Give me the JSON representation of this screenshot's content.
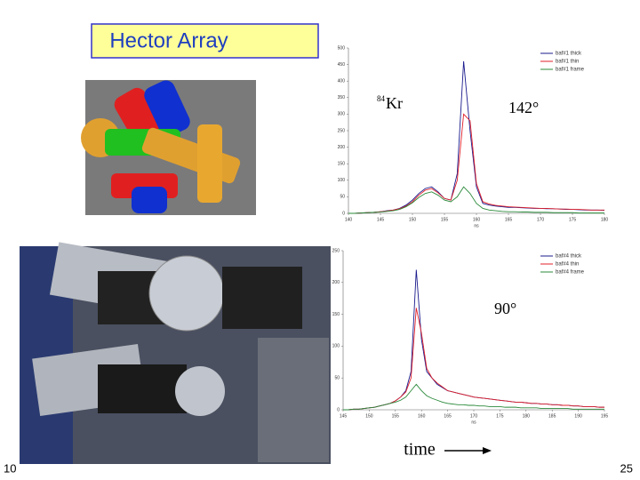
{
  "slide": {
    "title": "Hector Array",
    "isotope_mass": "84",
    "isotope": "Kr",
    "axis_caption": "time",
    "page_left": "10",
    "page_right": "25"
  },
  "chart_data": [
    {
      "type": "line",
      "annotation": "142°",
      "xlabel": "ns",
      "legend": "top-right",
      "x": [
        140,
        141,
        142,
        143,
        144,
        145,
        146,
        147,
        148,
        149,
        150,
        151,
        152,
        153,
        154,
        155,
        156,
        157,
        158,
        159,
        160,
        161,
        162,
        163,
        164,
        165,
        166,
        167,
        168,
        169,
        170,
        171,
        172,
        173,
        174,
        175,
        176,
        177,
        178,
        179,
        180
      ],
      "xlim": [
        140,
        180
      ],
      "xticks": [
        140,
        145,
        150,
        155,
        160,
        165,
        170,
        175,
        180
      ],
      "ylim": [
        0,
        500
      ],
      "yticks": [
        0,
        50,
        100,
        150,
        200,
        250,
        300,
        350,
        400,
        450,
        500
      ],
      "series": [
        {
          "name": "baf#1 thick",
          "color": "#1a1a8c",
          "values": [
            0,
            0,
            1,
            2,
            3,
            5,
            8,
            10,
            15,
            25,
            40,
            60,
            75,
            80,
            65,
            45,
            40,
            120,
            460,
            250,
            80,
            30,
            25,
            22,
            20,
            18,
            18,
            17,
            16,
            15,
            15,
            14,
            14,
            13,
            12,
            12,
            11,
            10,
            10,
            10,
            9
          ]
        },
        {
          "name": "baf#1 thin",
          "color": "#e0202a",
          "values": [
            0,
            0,
            1,
            2,
            3,
            5,
            7,
            10,
            14,
            22,
            35,
            55,
            70,
            75,
            62,
            45,
            40,
            100,
            300,
            280,
            90,
            35,
            28,
            24,
            22,
            20,
            19,
            18,
            17,
            16,
            15,
            15,
            14,
            13,
            13,
            12,
            12,
            11,
            10,
            10,
            10
          ]
        },
        {
          "name": "baf#1 frame",
          "color": "#2a8a3a",
          "values": [
            0,
            0,
            1,
            2,
            3,
            4,
            6,
            8,
            12,
            20,
            32,
            48,
            60,
            65,
            55,
            40,
            35,
            50,
            80,
            60,
            30,
            15,
            10,
            8,
            6,
            5,
            5,
            4,
            4,
            3,
            3,
            3,
            2,
            2,
            2,
            2,
            1,
            1,
            1,
            1,
            1
          ]
        }
      ]
    },
    {
      "type": "line",
      "annotation": "90°",
      "xlabel": "ns",
      "legend": "top-right",
      "x": [
        145,
        146,
        147,
        148,
        149,
        150,
        151,
        152,
        153,
        154,
        155,
        156,
        157,
        158,
        159,
        160,
        161,
        162,
        163,
        164,
        165,
        166,
        167,
        168,
        169,
        170,
        171,
        172,
        173,
        174,
        175,
        176,
        177,
        178,
        179,
        180,
        181,
        182,
        183,
        184,
        185,
        186,
        187,
        188,
        189,
        190,
        191,
        192,
        193,
        194,
        195
      ],
      "xlim": [
        145,
        195
      ],
      "xticks": [
        145,
        150,
        155,
        160,
        165,
        170,
        175,
        180,
        185,
        190,
        195
      ],
      "ylim": [
        0,
        250
      ],
      "yticks": [
        0,
        50,
        100,
        150,
        200,
        250
      ],
      "series": [
        {
          "name": "baf#4 thick",
          "color": "#1a1a8c",
          "values": [
            0,
            0,
            1,
            1,
            2,
            3,
            4,
            6,
            8,
            10,
            14,
            20,
            30,
            60,
            220,
            110,
            60,
            50,
            40,
            35,
            30,
            28,
            26,
            24,
            22,
            20,
            19,
            18,
            17,
            16,
            15,
            14,
            13,
            12,
            12,
            11,
            10,
            10,
            9,
            9,
            8,
            8,
            7,
            7,
            6,
            6,
            5,
            5,
            5,
            4,
            4
          ]
        },
        {
          "name": "baf#4 thin",
          "color": "#e0202a",
          "values": [
            0,
            0,
            1,
            1,
            2,
            3,
            4,
            6,
            8,
            10,
            14,
            20,
            28,
            50,
            160,
            120,
            65,
            50,
            42,
            36,
            30,
            28,
            26,
            24,
            22,
            20,
            19,
            18,
            17,
            16,
            15,
            14,
            13,
            12,
            12,
            11,
            10,
            10,
            9,
            9,
            8,
            8,
            7,
            7,
            6,
            6,
            5,
            5,
            5,
            4,
            4
          ]
        },
        {
          "name": "baf#4 frame",
          "color": "#2a8a3a",
          "values": [
            0,
            0,
            1,
            1,
            2,
            3,
            4,
            6,
            8,
            10,
            12,
            15,
            20,
            30,
            40,
            30,
            22,
            18,
            15,
            12,
            10,
            9,
            8,
            8,
            7,
            7,
            6,
            6,
            5,
            5,
            5,
            4,
            4,
            4,
            3,
            3,
            3,
            3,
            2,
            2,
            2,
            2,
            2,
            2,
            1,
            1,
            1,
            1,
            1,
            1,
            1
          ]
        }
      ]
    }
  ]
}
